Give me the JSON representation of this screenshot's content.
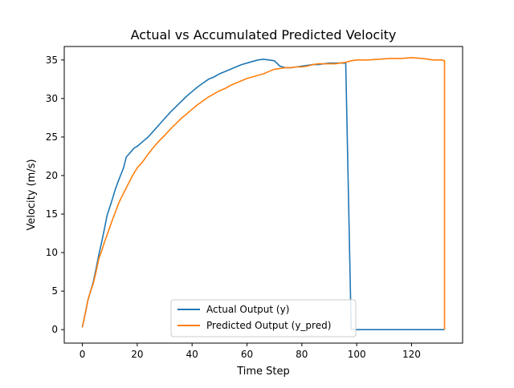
{
  "chart_data": {
    "type": "line",
    "title": "Actual vs Accumulated Predicted Velocity",
    "xlabel": "Time Step",
    "ylabel": "Velocity (m/s)",
    "xlim": [
      -6.6,
      138.6
    ],
    "ylim": [
      -1.75,
      36.75
    ],
    "xticks": [
      0,
      20,
      40,
      60,
      80,
      100,
      120
    ],
    "yticks": [
      0,
      5,
      10,
      15,
      20,
      25,
      30,
      35
    ],
    "grid": false,
    "legend": "lower center",
    "series": [
      {
        "name": "Actual Output (y)",
        "color": "#1f77b4",
        "x": [
          0,
          1,
          2,
          3,
          4,
          5,
          6,
          7,
          8,
          9,
          10,
          11,
          12,
          13,
          14,
          15,
          16,
          17,
          18,
          19,
          20,
          22,
          24,
          26,
          28,
          30,
          32,
          34,
          36,
          38,
          40,
          42,
          44,
          46,
          48,
          50,
          52,
          54,
          56,
          58,
          60,
          62,
          64,
          66,
          68,
          70,
          72,
          74,
          76,
          78,
          80,
          82,
          84,
          86,
          88,
          90,
          92,
          94,
          96,
          98,
          100,
          104,
          108,
          112,
          116,
          120,
          124,
          128,
          131,
          132,
          132
        ],
        "y": [
          0.3,
          2.0,
          3.8,
          5.0,
          6.2,
          7.9,
          9.7,
          11.3,
          13.0,
          14.8,
          15.9,
          17.0,
          18.2,
          19.2,
          20.1,
          21.0,
          22.4,
          22.8,
          23.2,
          23.6,
          23.8,
          24.4,
          25.0,
          25.8,
          26.6,
          27.4,
          28.2,
          28.9,
          29.6,
          30.3,
          30.9,
          31.5,
          32.0,
          32.5,
          32.8,
          33.2,
          33.5,
          33.8,
          34.1,
          34.4,
          34.6,
          34.8,
          35.0,
          35.1,
          35.0,
          34.9,
          34.2,
          34.0,
          34.0,
          34.1,
          34.2,
          34.3,
          34.4,
          34.4,
          34.5,
          34.6,
          34.6,
          34.6,
          34.6,
          0.0,
          0.0,
          0.0,
          0.0,
          0.0,
          0.0,
          0.0,
          0.0,
          0.0,
          0.0,
          0.0,
          0.0
        ]
      },
      {
        "name": "Predicted Output (y_pred)",
        "color": "#ff7f0e",
        "x": [
          0,
          1,
          2,
          3,
          4,
          5,
          6,
          7,
          8,
          9,
          10,
          11,
          12,
          13,
          14,
          15,
          16,
          17,
          18,
          19,
          20,
          22,
          24,
          26,
          28,
          30,
          32,
          34,
          36,
          38,
          40,
          42,
          44,
          46,
          48,
          50,
          52,
          54,
          56,
          58,
          60,
          62,
          64,
          66,
          68,
          70,
          72,
          74,
          76,
          78,
          80,
          82,
          84,
          86,
          88,
          90,
          92,
          94,
          96,
          98,
          100,
          104,
          108,
          112,
          116,
          120,
          124,
          128,
          131,
          132,
          132
        ],
        "y": [
          0.3,
          2.0,
          3.8,
          5.0,
          6.0,
          7.5,
          9.2,
          10.2,
          11.3,
          12.3,
          13.3,
          14.3,
          15.2,
          16.2,
          17.0,
          17.7,
          18.4,
          19.1,
          19.8,
          20.4,
          21.0,
          21.8,
          22.8,
          23.7,
          24.5,
          25.2,
          26.0,
          26.7,
          27.4,
          28.0,
          28.6,
          29.2,
          29.7,
          30.2,
          30.6,
          31.0,
          31.3,
          31.7,
          32.0,
          32.3,
          32.6,
          32.8,
          33.0,
          33.2,
          33.5,
          33.8,
          33.9,
          34.0,
          34.0,
          34.1,
          34.1,
          34.2,
          34.4,
          34.5,
          34.5,
          34.5,
          34.5,
          34.6,
          34.7,
          34.9,
          35.0,
          35.0,
          35.1,
          35.2,
          35.2,
          35.3,
          35.2,
          35.0,
          35.0,
          34.9,
          0.0
        ]
      }
    ]
  }
}
